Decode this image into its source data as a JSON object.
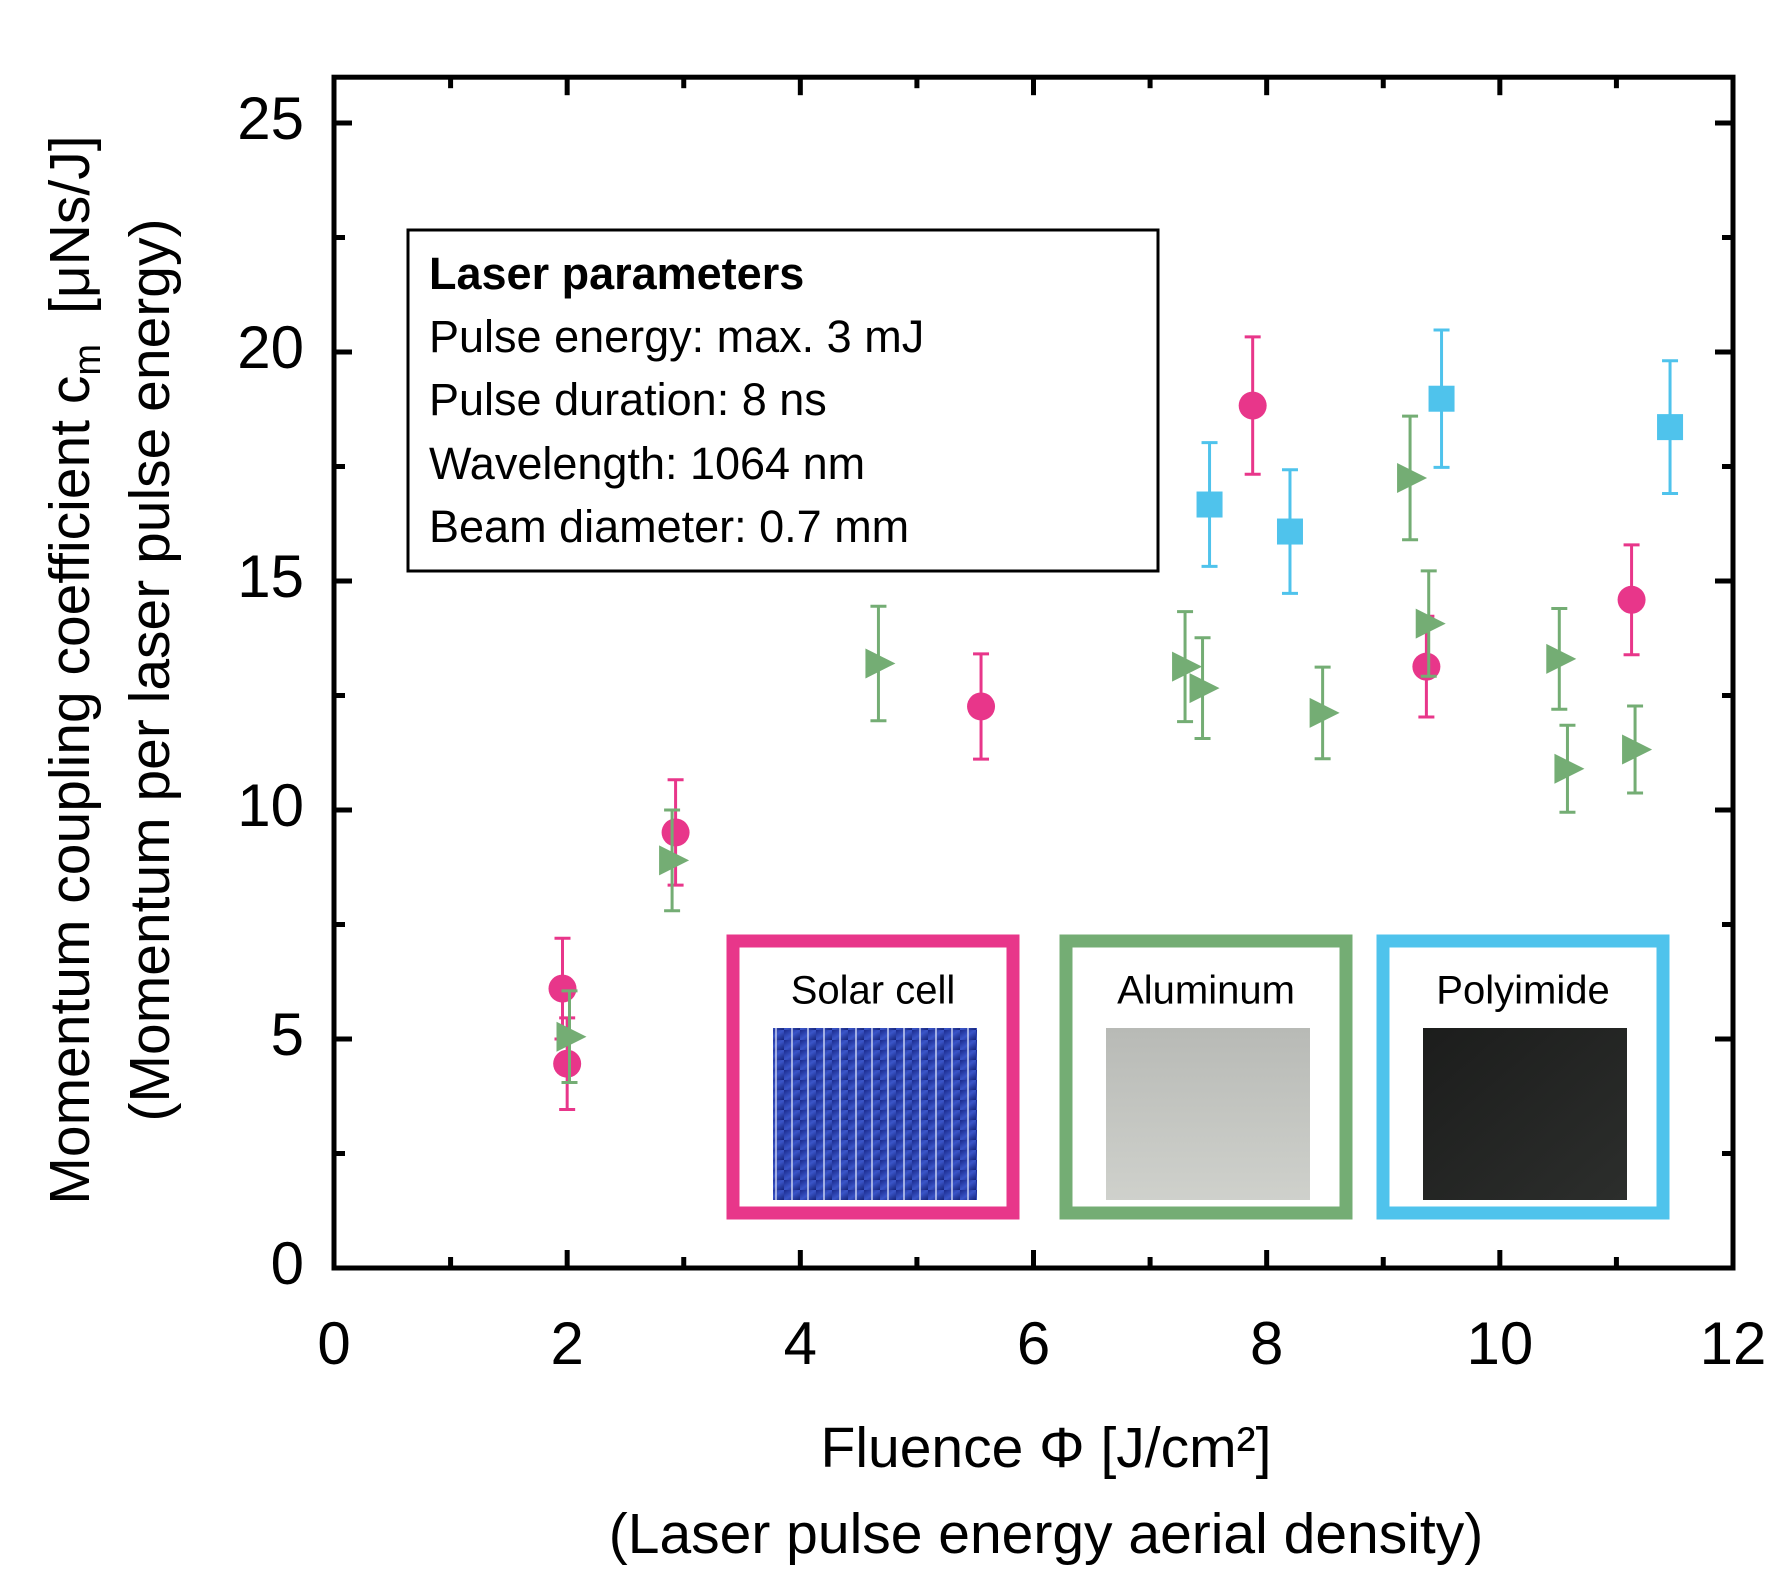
{
  "chart_data": {
    "type": "scatter",
    "xlabel": "Fluence Φ [J/cm²]",
    "xlabel2": "(Laser pulse energy aerial density)",
    "ylabel": "Momentum coupling coefficient c",
    "ylabel_subscript": "m",
    "ylabel_unit": "[μNs/J]",
    "ylabel2": "(Momentum per laser pulse energy)",
    "xlim": [
      0,
      12
    ],
    "ylim": [
      0,
      26
    ],
    "xticks": [
      0,
      2,
      4,
      6,
      8,
      10,
      12
    ],
    "yticks": [
      0,
      5,
      10,
      15,
      20,
      25
    ],
    "xminorticks": [
      1,
      3,
      5,
      7,
      9,
      11
    ],
    "yminorticks": [
      2.5,
      7.5,
      12.5,
      17.5,
      22.5
    ],
    "annotation": {
      "title": "Laser parameters",
      "lines": [
        "Pulse energy: max. 3 mJ",
        "Pulse duration: 8 ns",
        "Wavelength: 1064 nm",
        "Beam diameter: 0.7 mm"
      ]
    },
    "series": [
      {
        "name": "Solar cell",
        "color": "#e8368a",
        "marker": "circle",
        "x": [
          1.96,
          2.0,
          2.93,
          5.55,
          7.88,
          9.37,
          11.13
        ],
        "values": [
          6.1,
          4.46,
          9.51,
          12.26,
          18.83,
          13.13,
          14.59
        ],
        "errors": [
          1.1,
          1.0,
          1.15,
          1.15,
          1.5,
          1.1,
          1.2
        ]
      },
      {
        "name": "Aluminum",
        "color": "#74ad74",
        "marker": "triangle",
        "x": [
          2.02,
          2.9,
          4.67,
          7.3,
          7.45,
          8.48,
          9.23,
          9.39,
          10.51,
          10.58,
          11.16
        ],
        "values": [
          5.05,
          8.9,
          13.2,
          13.13,
          12.66,
          12.12,
          17.25,
          14.07,
          13.3,
          10.9,
          11.32
        ],
        "errors": [
          1.0,
          1.1,
          1.25,
          1.2,
          1.1,
          1.0,
          1.35,
          1.15,
          1.1,
          0.95,
          0.95
        ]
      },
      {
        "name": "Polyimide",
        "color": "#4fc3ec",
        "marker": "square",
        "x": [
          7.51,
          8.2,
          9.5,
          11.46
        ],
        "values": [
          16.67,
          16.08,
          18.98,
          18.36
        ],
        "errors": [
          1.35,
          1.35,
          1.5,
          1.45
        ]
      }
    ]
  }
}
